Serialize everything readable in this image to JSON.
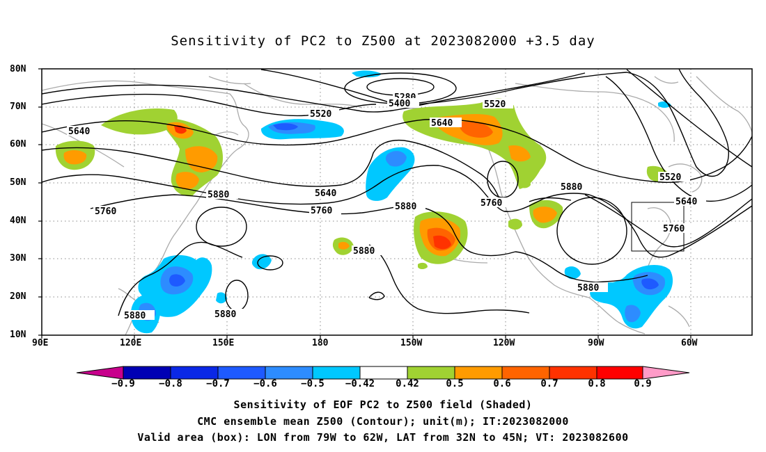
{
  "title": "Sensitivity of PC2 to Z500 at 2023082000 +3.5 day",
  "lat_ticks": [
    "80N",
    "70N",
    "60N",
    "50N",
    "40N",
    "30N",
    "20N",
    "10N"
  ],
  "lon_ticks": [
    "90E",
    "120E",
    "150E",
    "180",
    "150W",
    "120W",
    "90W",
    "60W"
  ],
  "contour_labels": {
    "c5280": "5280",
    "c5400": "5400",
    "c5520a": "5520",
    "c5520b": "5520",
    "c5520c": "5520",
    "c5640a": "5640",
    "c5640b": "5640",
    "c5640c": "5640",
    "c5640d": "5640",
    "c5760a": "5760",
    "c5760b": "5760",
    "c5760c": "5760",
    "c5760d": "5760",
    "c5880a": "5880",
    "c5880b": "5880",
    "c5880c": "5880",
    "c5880d": "5880",
    "c5880e": "5880",
    "c5880f": "5880",
    "c5880g": "5880"
  },
  "colorbar": {
    "labels": [
      "−0.9",
      "−0.8",
      "−0.7",
      "−0.6",
      "−0.5",
      "−0.42",
      "0.42",
      "0.5",
      "0.6",
      "0.7",
      "0.8",
      "0.9"
    ],
    "colors": [
      "#0000b4",
      "#0a28e6",
      "#1e5aff",
      "#2d8cff",
      "#00c8ff",
      "#ffffff",
      "#a0d232",
      "#ff9b00",
      "#ff6400",
      "#ff3200",
      "#ff0000"
    ],
    "low_end_color": "#c8008c",
    "high_end_color": "#ff9bc8"
  },
  "captions": {
    "line1": "Sensitivity of EOF PC2 to Z500 field (Shaded)",
    "line2": "CMC ensemble mean Z500 (Contour); unit(m); IT:2023082000",
    "line3": "Valid area (box): LON from 79W to 62W, LAT from 32N to 45N; VT: 2023082600"
  },
  "valid_area": {
    "lon_from": "79W",
    "lon_to": "62W",
    "lat_from": "32N",
    "lat_to": "45N"
  }
}
